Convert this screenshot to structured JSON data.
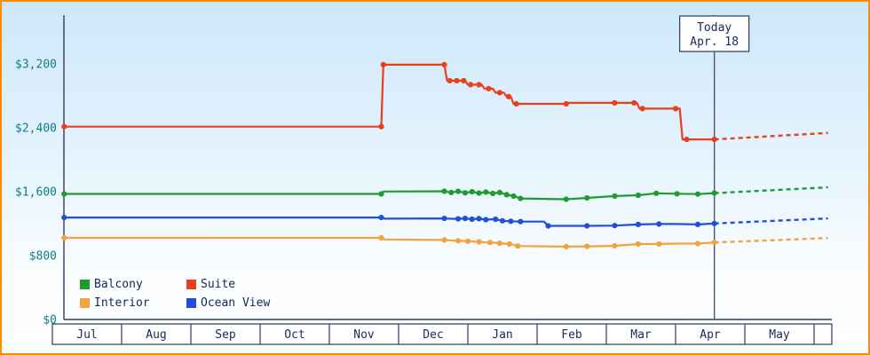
{
  "chart_data": {
    "type": "line",
    "title": "",
    "y_axis": {
      "ticks": [
        {
          "label": "$0",
          "value": 0
        },
        {
          "label": "$800",
          "value": 800
        },
        {
          "label": "$1,600",
          "value": 1600
        },
        {
          "label": "$2,400",
          "value": 2400
        },
        {
          "label": "$3,200",
          "value": 3200
        }
      ],
      "ylim": [
        0,
        3811
      ]
    },
    "x_axis": {
      "months": [
        "Jul",
        "Aug",
        "Sep",
        "Oct",
        "Nov",
        "Dec",
        "Jan",
        "Feb",
        "Mar",
        "Apr",
        "May"
      ]
    },
    "today": {
      "line1": "Today",
      "line2": "Apr. 18",
      "x": 9.56
    },
    "colors": {
      "axis": "#2e3a5c",
      "y_label": "#0f7e7e",
      "month_label": "#1b2a55",
      "today_line": "#4c566a",
      "box_border": "#2e3a5c"
    },
    "series": [
      {
        "name": "Suite",
        "color": "#e8401c",
        "points": [
          [
            0.17,
            2415
          ],
          [
            4.75,
            2415
          ],
          [
            4.78,
            3190
          ],
          [
            5.66,
            3190
          ],
          [
            5.7,
            2990
          ],
          [
            5.96,
            2990
          ],
          [
            6.0,
            2940
          ],
          [
            6.2,
            2940
          ],
          [
            6.24,
            2890
          ],
          [
            6.36,
            2890
          ],
          [
            6.4,
            2840
          ],
          [
            6.52,
            2840
          ],
          [
            6.56,
            2790
          ],
          [
            6.62,
            2790
          ],
          [
            6.66,
            2700
          ],
          [
            7.42,
            2700
          ],
          [
            7.46,
            2712
          ],
          [
            8.44,
            2712
          ],
          [
            8.48,
            2640
          ],
          [
            9.06,
            2640
          ],
          [
            9.1,
            2255
          ],
          [
            9.56,
            2255
          ]
        ],
        "markers": [
          [
            0.17,
            2415
          ],
          [
            4.75,
            2415
          ],
          [
            4.78,
            3190
          ],
          [
            5.66,
            3190
          ],
          [
            5.74,
            2990
          ],
          [
            5.84,
            2990
          ],
          [
            5.94,
            2990
          ],
          [
            6.04,
            2940
          ],
          [
            6.16,
            2940
          ],
          [
            6.3,
            2890
          ],
          [
            6.46,
            2840
          ],
          [
            6.59,
            2790
          ],
          [
            6.7,
            2700
          ],
          [
            7.42,
            2700
          ],
          [
            8.12,
            2712
          ],
          [
            8.4,
            2712
          ],
          [
            8.52,
            2640
          ],
          [
            9.0,
            2640
          ],
          [
            9.16,
            2255
          ],
          [
            9.56,
            2255
          ]
        ],
        "forecast": [
          [
            9.56,
            2255
          ],
          [
            11.2,
            2335
          ]
        ]
      },
      {
        "name": "Balcony",
        "color": "#1e9b32",
        "points": [
          [
            0.17,
            1572
          ],
          [
            4.75,
            1572
          ],
          [
            4.78,
            1602
          ],
          [
            5.66,
            1606
          ],
          [
            5.76,
            1590
          ],
          [
            5.86,
            1604
          ],
          [
            5.96,
            1586
          ],
          [
            6.06,
            1600
          ],
          [
            6.16,
            1582
          ],
          [
            6.26,
            1596
          ],
          [
            6.36,
            1578
          ],
          [
            6.46,
            1590
          ],
          [
            6.56,
            1562
          ],
          [
            6.66,
            1545
          ],
          [
            6.76,
            1516
          ],
          [
            7.42,
            1506
          ],
          [
            7.72,
            1522
          ],
          [
            8.12,
            1546
          ],
          [
            8.46,
            1556
          ],
          [
            8.72,
            1580
          ],
          [
            9.02,
            1574
          ],
          [
            9.32,
            1570
          ],
          [
            9.56,
            1582
          ]
        ],
        "markers": [
          [
            0.17,
            1572
          ],
          [
            4.75,
            1572
          ],
          [
            5.66,
            1606
          ],
          [
            5.76,
            1590
          ],
          [
            5.86,
            1604
          ],
          [
            5.96,
            1586
          ],
          [
            6.06,
            1600
          ],
          [
            6.16,
            1582
          ],
          [
            6.26,
            1596
          ],
          [
            6.36,
            1578
          ],
          [
            6.46,
            1590
          ],
          [
            6.56,
            1562
          ],
          [
            6.66,
            1545
          ],
          [
            6.76,
            1516
          ],
          [
            7.42,
            1506
          ],
          [
            7.72,
            1522
          ],
          [
            8.12,
            1546
          ],
          [
            8.46,
            1556
          ],
          [
            8.72,
            1580
          ],
          [
            9.02,
            1574
          ],
          [
            9.32,
            1570
          ],
          [
            9.56,
            1582
          ]
        ],
        "forecast": [
          [
            9.56,
            1582
          ],
          [
            11.2,
            1655
          ]
        ]
      },
      {
        "name": "Ocean View",
        "color": "#2150d6",
        "points": [
          [
            0.17,
            1277
          ],
          [
            4.75,
            1277
          ],
          [
            4.8,
            1262
          ],
          [
            5.66,
            1266
          ],
          [
            5.8,
            1260
          ],
          [
            5.96,
            1266
          ],
          [
            6.06,
            1256
          ],
          [
            6.16,
            1262
          ],
          [
            6.26,
            1250
          ],
          [
            6.4,
            1256
          ],
          [
            6.5,
            1236
          ],
          [
            6.62,
            1230
          ],
          [
            6.76,
            1226
          ],
          [
            7.1,
            1226
          ],
          [
            7.16,
            1172
          ],
          [
            7.72,
            1172
          ],
          [
            8.12,
            1176
          ],
          [
            8.46,
            1190
          ],
          [
            8.76,
            1196
          ],
          [
            9.02,
            1196
          ],
          [
            9.32,
            1190
          ],
          [
            9.56,
            1202
          ]
        ],
        "markers": [
          [
            0.17,
            1277
          ],
          [
            4.75,
            1277
          ],
          [
            5.66,
            1266
          ],
          [
            5.86,
            1260
          ],
          [
            5.96,
            1266
          ],
          [
            6.06,
            1256
          ],
          [
            6.16,
            1262
          ],
          [
            6.26,
            1250
          ],
          [
            6.4,
            1256
          ],
          [
            6.5,
            1236
          ],
          [
            6.62,
            1230
          ],
          [
            6.76,
            1226
          ],
          [
            7.16,
            1172
          ],
          [
            7.72,
            1172
          ],
          [
            8.12,
            1176
          ],
          [
            8.46,
            1190
          ],
          [
            8.76,
            1196
          ],
          [
            9.32,
            1190
          ],
          [
            9.56,
            1202
          ]
        ],
        "forecast": [
          [
            9.56,
            1202
          ],
          [
            11.2,
            1266
          ]
        ]
      },
      {
        "name": "Interior",
        "color": "#f2a33c",
        "points": [
          [
            0.17,
            1022
          ],
          [
            4.75,
            1022
          ],
          [
            4.8,
            1002
          ],
          [
            5.66,
            996
          ],
          [
            5.8,
            988
          ],
          [
            5.96,
            982
          ],
          [
            6.1,
            976
          ],
          [
            6.26,
            966
          ],
          [
            6.4,
            960
          ],
          [
            6.52,
            950
          ],
          [
            6.62,
            944
          ],
          [
            6.72,
            920
          ],
          [
            7.42,
            912
          ],
          [
            7.72,
            916
          ],
          [
            8.12,
            922
          ],
          [
            8.46,
            944
          ],
          [
            8.76,
            946
          ],
          [
            9.02,
            950
          ],
          [
            9.32,
            950
          ],
          [
            9.56,
            964
          ]
        ],
        "markers": [
          [
            0.17,
            1022
          ],
          [
            4.75,
            1022
          ],
          [
            5.66,
            996
          ],
          [
            5.86,
            986
          ],
          [
            6.0,
            980
          ],
          [
            6.16,
            972
          ],
          [
            6.32,
            964
          ],
          [
            6.46,
            954
          ],
          [
            6.6,
            946
          ],
          [
            6.72,
            920
          ],
          [
            7.42,
            912
          ],
          [
            7.72,
            916
          ],
          [
            8.12,
            922
          ],
          [
            8.46,
            944
          ],
          [
            8.76,
            946
          ],
          [
            9.32,
            950
          ],
          [
            9.56,
            964
          ]
        ],
        "forecast": [
          [
            9.56,
            964
          ],
          [
            11.2,
            1020
          ]
        ]
      }
    ],
    "legend": {
      "items": [
        {
          "label": "Balcony",
          "color": "#1e9b32"
        },
        {
          "label": "Suite",
          "color": "#e8401c"
        },
        {
          "label": "Interior",
          "color": "#f2a33c"
        },
        {
          "label": "Ocean View",
          "color": "#2150d6"
        }
      ]
    }
  }
}
